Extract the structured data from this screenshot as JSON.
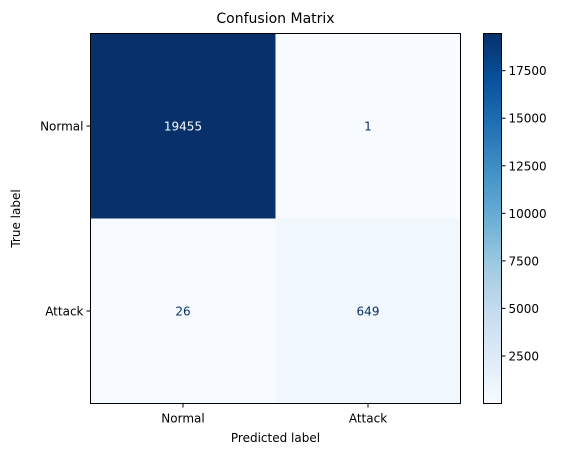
{
  "chart_data": {
    "type": "heatmap",
    "title": "Confusion Matrix",
    "xlabel": "Predicted label",
    "ylabel": "True label",
    "x_categories": [
      "Normal",
      "Attack"
    ],
    "y_categories": [
      "Normal",
      "Attack"
    ],
    "matrix": [
      [
        19455,
        1
      ],
      [
        26,
        649
      ]
    ],
    "colormap": "Blues",
    "colorbar": {
      "ticks": [
        2500,
        5000,
        7500,
        10000,
        12500,
        15000,
        17500
      ]
    }
  }
}
